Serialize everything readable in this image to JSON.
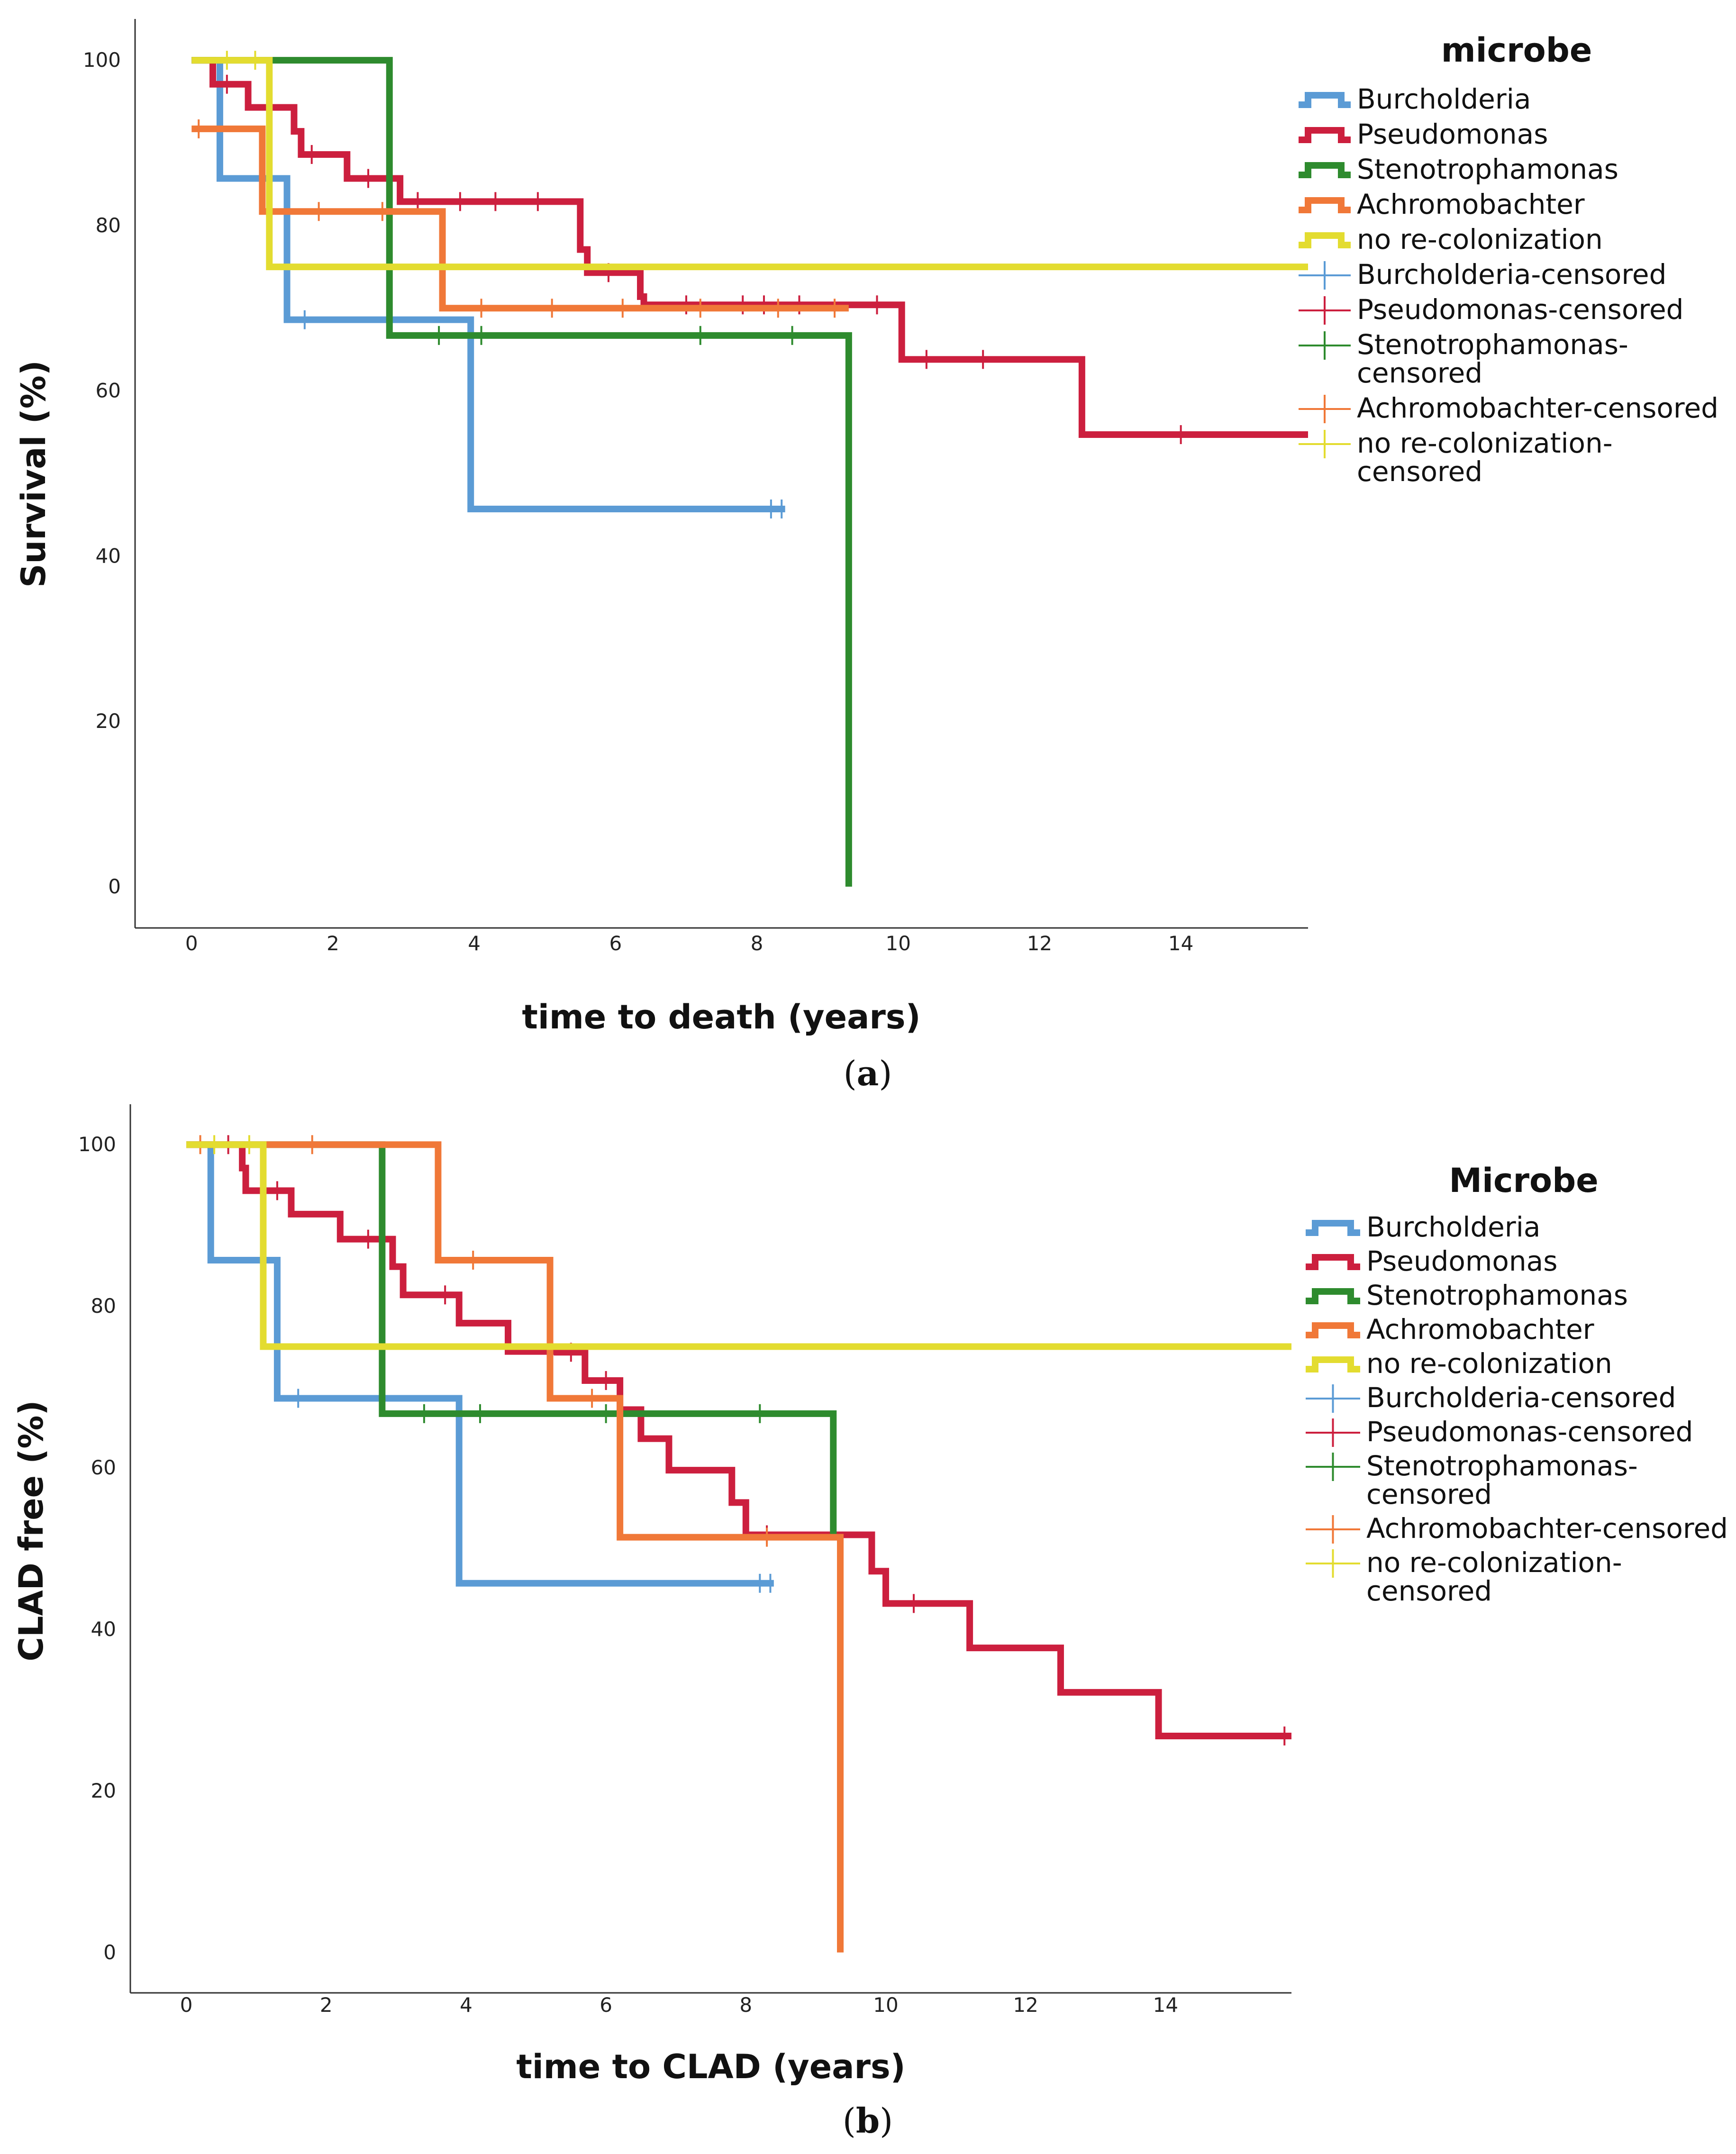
{
  "chart_data": [
    {
      "type": "line",
      "title": "",
      "panel_caption_letter": "a",
      "xlabel": "time to death (years)",
      "ylabel": "Survival (%)",
      "xlim": [
        -0.8,
        15.8
      ],
      "ylim": [
        -5,
        105
      ],
      "x_ticks": [
        "0",
        "2",
        "4",
        "6",
        "8",
        "10",
        "12",
        "14"
      ],
      "y_ticks": [
        "0",
        "20",
        "40",
        "60",
        "80",
        "100"
      ],
      "legend": {
        "title": "microbe",
        "position": "top-right",
        "entries": [
          {
            "label": "Burcholderia",
            "kind": "line",
            "color": "#5b9bd5"
          },
          {
            "label": "Pseudomonas",
            "kind": "line",
            "color": "#cc1f3e"
          },
          {
            "label": "Stenotrophamonas",
            "kind": "line",
            "color": "#2e8b2e"
          },
          {
            "label": "Achromobachter",
            "kind": "line",
            "color": "#f07838"
          },
          {
            "label": "no re-colonization",
            "kind": "line",
            "color": "#e3dc30"
          },
          {
            "label": "Burcholderia-censored",
            "kind": "censor",
            "color": "#5b9bd5"
          },
          {
            "label": "Pseudomonas-censored",
            "kind": "censor",
            "color": "#cc1f3e"
          },
          {
            "label": "Stenotrophamonas-",
            "label2": "censored",
            "kind": "censor",
            "color": "#2e8b2e"
          },
          {
            "label": "Achromobachter-censored",
            "kind": "censor",
            "color": "#f07838"
          },
          {
            "label": "no re-colonization-",
            "label2": "censored",
            "kind": "censor",
            "color": "#e3dc30"
          }
        ]
      },
      "series": [
        {
          "name": "Burcholderia",
          "color": "#5b9bd5",
          "steps": [
            [
              0,
              100
            ],
            [
              0.4,
              85.7
            ],
            [
              1.35,
              68.6
            ],
            [
              3.95,
              45.7
            ],
            [
              8.4,
              45.7
            ]
          ],
          "censored": [
            [
              1.6,
              68.6
            ],
            [
              8.2,
              45.7
            ],
            [
              8.35,
              45.7
            ]
          ]
        },
        {
          "name": "Pseudomonas",
          "color": "#cc1f3e",
          "steps": [
            [
              0,
              100
            ],
            [
              0.3,
              97.1
            ],
            [
              0.8,
              94.3
            ],
            [
              1.45,
              91.4
            ],
            [
              1.55,
              88.6
            ],
            [
              2.2,
              85.7
            ],
            [
              2.95,
              82.9
            ],
            [
              5.5,
              77.1
            ],
            [
              5.6,
              74.3
            ],
            [
              6.35,
              71.4
            ],
            [
              6.4,
              70.4
            ],
            [
              10.05,
              63.8
            ],
            [
              12.6,
              54.7
            ],
            [
              15.8,
              54.7
            ]
          ],
          "censored": [
            [
              0.5,
              97.1
            ],
            [
              1.7,
              88.6
            ],
            [
              2.5,
              85.7
            ],
            [
              3.2,
              82.9
            ],
            [
              3.8,
              82.9
            ],
            [
              4.3,
              82.9
            ],
            [
              4.9,
              82.9
            ],
            [
              5.9,
              74.3
            ],
            [
              7,
              70.4
            ],
            [
              7.8,
              70.4
            ],
            [
              8.1,
              70.4
            ],
            [
              8.6,
              70.4
            ],
            [
              9.7,
              70.4
            ],
            [
              10.4,
              63.8
            ],
            [
              11.2,
              63.8
            ],
            [
              14,
              54.7
            ]
          ]
        },
        {
          "name": "Stenotrophamonas",
          "color": "#2e8b2e",
          "steps": [
            [
              0,
              100
            ],
            [
              2.8,
              66.7
            ],
            [
              9.3,
              0
            ],
            [
              9.3,
              0
            ]
          ],
          "censored": [
            [
              3.5,
              66.7
            ],
            [
              4.1,
              66.7
            ],
            [
              7.2,
              66.7
            ],
            [
              8.5,
              66.7
            ]
          ]
        },
        {
          "name": "Achromobachter",
          "color": "#f07838",
          "steps": [
            [
              0,
              91.7
            ],
            [
              1,
              81.7
            ],
            [
              3.55,
              70
            ],
            [
              9.3,
              70
            ]
          ],
          "censored": [
            [
              0.1,
              91.7
            ],
            [
              1.8,
              81.7
            ],
            [
              2.7,
              81.7
            ],
            [
              4.1,
              70
            ],
            [
              5.1,
              70
            ],
            [
              6.1,
              70
            ],
            [
              7.2,
              70
            ],
            [
              8.3,
              70
            ],
            [
              9.1,
              70
            ]
          ]
        },
        {
          "name": "no re-colonization",
          "color": "#e3dc30",
          "steps": [
            [
              0,
              100
            ],
            [
              1.1,
              75
            ],
            [
              15.8,
              75
            ]
          ],
          "censored": [
            [
              0.5,
              100
            ],
            [
              0.9,
              100
            ]
          ]
        }
      ]
    },
    {
      "type": "line",
      "title": "",
      "panel_caption_letter": "b",
      "xlabel": "time to CLAD (years)",
      "ylabel": "CLAD free (%)",
      "xlim": [
        -0.8,
        15.8
      ],
      "ylim": [
        -5,
        105
      ],
      "x_ticks": [
        "0",
        "2",
        "4",
        "6",
        "8",
        "10",
        "12",
        "14"
      ],
      "y_ticks": [
        "0",
        "20",
        "40",
        "60",
        "80",
        "100"
      ],
      "legend": {
        "title": "Microbe",
        "position": "top-right",
        "entries": [
          {
            "label": "Burcholderia",
            "kind": "line",
            "color": "#5b9bd5"
          },
          {
            "label": "Pseudomonas",
            "kind": "line",
            "color": "#cc1f3e"
          },
          {
            "label": "Stenotrophamonas",
            "kind": "line",
            "color": "#2e8b2e"
          },
          {
            "label": "Achromobachter",
            "kind": "line",
            "color": "#f07838"
          },
          {
            "label": "no re-colonization",
            "kind": "line",
            "color": "#e3dc30"
          },
          {
            "label": "Burcholderia-censored",
            "kind": "censor",
            "color": "#5b9bd5"
          },
          {
            "label": "Pseudomonas-censored",
            "kind": "censor",
            "color": "#cc1f3e"
          },
          {
            "label": "Stenotrophamonas-",
            "label2": "censored",
            "kind": "censor",
            "color": "#2e8b2e"
          },
          {
            "label": "Achromobachter-censored",
            "kind": "censor",
            "color": "#f07838"
          },
          {
            "label": "no re-colonization-",
            "label2": "censored",
            "kind": "censor",
            "color": "#e3dc30"
          }
        ]
      },
      "series": [
        {
          "name": "Burcholderia",
          "color": "#5b9bd5",
          "steps": [
            [
              0,
              100
            ],
            [
              0.35,
              85.7
            ],
            [
              1.3,
              68.6
            ],
            [
              3.9,
              45.7
            ],
            [
              8.4,
              45.7
            ]
          ],
          "censored": [
            [
              1.6,
              68.6
            ],
            [
              8.2,
              45.7
            ],
            [
              8.35,
              45.7
            ]
          ]
        },
        {
          "name": "Pseudomonas",
          "color": "#cc1f3e",
          "steps": [
            [
              0,
              100
            ],
            [
              0.8,
              97.1
            ],
            [
              0.85,
              94.3
            ],
            [
              1.5,
              91.4
            ],
            [
              2.2,
              88.3
            ],
            [
              2.75,
              88.3
            ],
            [
              2.95,
              84.9
            ],
            [
              3.1,
              81.4
            ],
            [
              3.9,
              77.9
            ],
            [
              4.6,
              74.4
            ],
            [
              5.3,
              74.3
            ],
            [
              5.7,
              70.8
            ],
            [
              6.2,
              67.2
            ],
            [
              6.5,
              63.6
            ],
            [
              6.9,
              59.7
            ],
            [
              7.8,
              55.7
            ],
            [
              8.0,
              51.7
            ],
            [
              9.6,
              51.7
            ],
            [
              9.8,
              47.2
            ],
            [
              10.0,
              43.2
            ],
            [
              11.2,
              37.7
            ],
            [
              12.5,
              32.2
            ],
            [
              13.9,
              26.8
            ],
            [
              15.8,
              26.8
            ]
          ],
          "censored": [
            [
              0.6,
              100
            ],
            [
              1.3,
              94.3
            ],
            [
              2.6,
              88.3
            ],
            [
              3.7,
              81.4
            ],
            [
              5.5,
              74.3
            ],
            [
              6.0,
              70.8
            ],
            [
              8.3,
              51.7
            ],
            [
              10.4,
              43.2
            ],
            [
              15.7,
              26.8
            ]
          ]
        },
        {
          "name": "Stenotrophamonas",
          "color": "#2e8b2e",
          "steps": [
            [
              0,
              100
            ],
            [
              2.75,
              100
            ],
            [
              2.8,
              66.7
            ],
            [
              9.25,
              51.7
            ],
            [
              9.25,
              51.7
            ]
          ],
          "censored": [
            [
              3.4,
              66.7
            ],
            [
              4.2,
              66.7
            ],
            [
              6.0,
              66.7
            ],
            [
              8.2,
              66.7
            ]
          ]
        },
        {
          "name": "Achromobachter",
          "color": "#f07838",
          "steps": [
            [
              0,
              100
            ],
            [
              3.6,
              85.7
            ],
            [
              5.2,
              68.6
            ],
            [
              6.2,
              51.4
            ],
            [
              9.35,
              0
            ],
            [
              9.35,
              0
            ]
          ],
          "censored": [
            [
              0.2,
              100
            ],
            [
              1.8,
              100
            ],
            [
              4.1,
              85.7
            ],
            [
              5.8,
              68.6
            ],
            [
              8.3,
              51.4
            ]
          ]
        },
        {
          "name": "no re-colonization",
          "color": "#e3dc30",
          "steps": [
            [
              0,
              100
            ],
            [
              1.1,
              75
            ],
            [
              15.8,
              75
            ]
          ],
          "censored": [
            [
              0.4,
              100
            ],
            [
              0.9,
              100
            ]
          ]
        }
      ]
    }
  ]
}
